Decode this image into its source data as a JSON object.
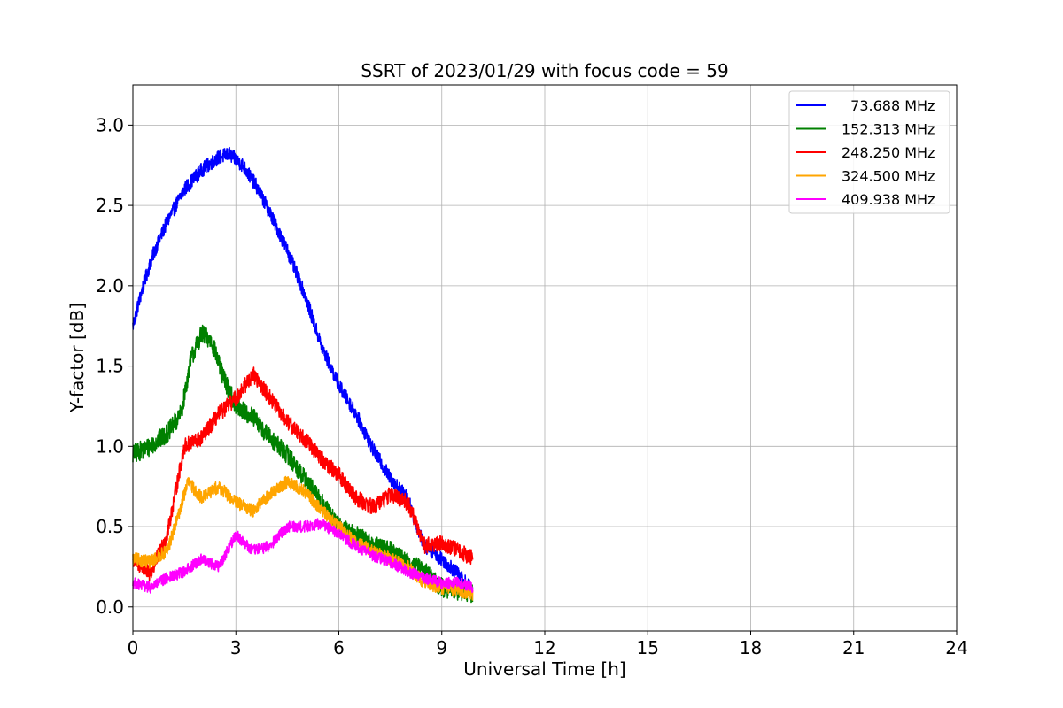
{
  "chart_data": {
    "type": "line",
    "title": "SSRT of 2023/01/29 with focus code = 59",
    "xlabel": "Universal Time [h]",
    "ylabel": "Y-factor [dB]",
    "xlim": [
      0,
      24
    ],
    "ylim": [
      -0.15,
      3.25
    ],
    "xticks": [
      0,
      3,
      6,
      9,
      12,
      15,
      18,
      21,
      24
    ],
    "xtick_labels": [
      "0",
      "3",
      "6",
      "9",
      "12",
      "15",
      "18",
      "21",
      "24"
    ],
    "yticks": [
      0.0,
      0.5,
      1.0,
      1.5,
      2.0,
      2.5,
      3.0
    ],
    "ytick_labels": [
      "0.0",
      "0.5",
      "1.0",
      "1.5",
      "2.0",
      "2.5",
      "3.0"
    ],
    "grid": true,
    "legend_position": "top-right",
    "series": [
      {
        "name": "73.688 MHz",
        "legend_label": "  73.688 MHz",
        "color": "#0000ff",
        "noise": 0.045,
        "x": [
          0.0,
          0.3,
          0.6,
          1.0,
          1.5,
          2.0,
          2.5,
          2.8,
          3.2,
          3.6,
          4.0,
          4.5,
          5.0,
          5.5,
          6.0,
          6.5,
          7.0,
          7.5,
          8.0,
          8.2,
          8.5,
          9.0,
          9.5,
          9.9
        ],
        "y": [
          1.75,
          2.0,
          2.2,
          2.4,
          2.6,
          2.72,
          2.8,
          2.82,
          2.75,
          2.62,
          2.45,
          2.22,
          1.95,
          1.62,
          1.38,
          1.2,
          0.98,
          0.8,
          0.68,
          0.55,
          0.38,
          0.3,
          0.2,
          0.1
        ]
      },
      {
        "name": "152.313 MHz",
        "legend_label": "152.313 MHz",
        "color": "#008000",
        "noise": 0.06,
        "x": [
          0.0,
          0.5,
          1.0,
          1.4,
          1.7,
          2.0,
          2.3,
          2.6,
          3.0,
          3.5,
          4.0,
          4.5,
          5.0,
          5.5,
          6.0,
          6.5,
          7.0,
          7.5,
          8.0,
          8.5,
          9.0,
          9.5,
          9.9
        ],
        "y": [
          0.95,
          1.0,
          1.08,
          1.2,
          1.55,
          1.7,
          1.65,
          1.45,
          1.25,
          1.18,
          1.05,
          0.95,
          0.8,
          0.65,
          0.5,
          0.45,
          0.38,
          0.35,
          0.28,
          0.22,
          0.12,
          0.1,
          0.08
        ]
      },
      {
        "name": "248.250 MHz",
        "legend_label": "248.250 MHz",
        "color": "#ff0000",
        "noise": 0.05,
        "x": [
          0.0,
          0.5,
          1.0,
          1.5,
          2.0,
          2.5,
          3.0,
          3.5,
          4.0,
          4.5,
          5.0,
          5.5,
          6.0,
          6.5,
          7.0,
          7.5,
          8.0,
          8.2,
          8.5,
          9.0,
          9.5,
          9.9
        ],
        "y": [
          0.3,
          0.2,
          0.45,
          1.0,
          1.05,
          1.2,
          1.3,
          1.45,
          1.3,
          1.15,
          1.05,
          0.92,
          0.82,
          0.68,
          0.62,
          0.7,
          0.65,
          0.55,
          0.38,
          0.4,
          0.35,
          0.3
        ]
      },
      {
        "name": "324.500 MHz",
        "legend_label": "324.500 MHz",
        "color": "#ffa500",
        "noise": 0.04,
        "x": [
          0.0,
          0.5,
          1.0,
          1.3,
          1.6,
          2.0,
          2.5,
          3.0,
          3.5,
          4.0,
          4.5,
          5.0,
          5.5,
          6.0,
          6.5,
          7.0,
          7.5,
          8.0,
          8.5,
          9.0,
          9.5,
          9.9
        ],
        "y": [
          0.3,
          0.28,
          0.35,
          0.55,
          0.78,
          0.68,
          0.75,
          0.65,
          0.6,
          0.7,
          0.78,
          0.72,
          0.6,
          0.5,
          0.4,
          0.35,
          0.3,
          0.25,
          0.15,
          0.12,
          0.1,
          0.08
        ]
      },
      {
        "name": "409.938 MHz",
        "legend_label": "409.938 MHz",
        "color": "#ff00ff",
        "noise": 0.035,
        "x": [
          0.0,
          0.5,
          1.0,
          1.5,
          2.0,
          2.5,
          3.0,
          3.5,
          4.0,
          4.5,
          5.0,
          5.5,
          6.0,
          6.5,
          7.0,
          7.5,
          8.0,
          8.5,
          9.0,
          9.5,
          9.9
        ],
        "y": [
          0.15,
          0.12,
          0.18,
          0.22,
          0.3,
          0.25,
          0.45,
          0.35,
          0.38,
          0.5,
          0.5,
          0.52,
          0.45,
          0.38,
          0.32,
          0.28,
          0.22,
          0.18,
          0.15,
          0.15,
          0.12
        ]
      }
    ]
  }
}
